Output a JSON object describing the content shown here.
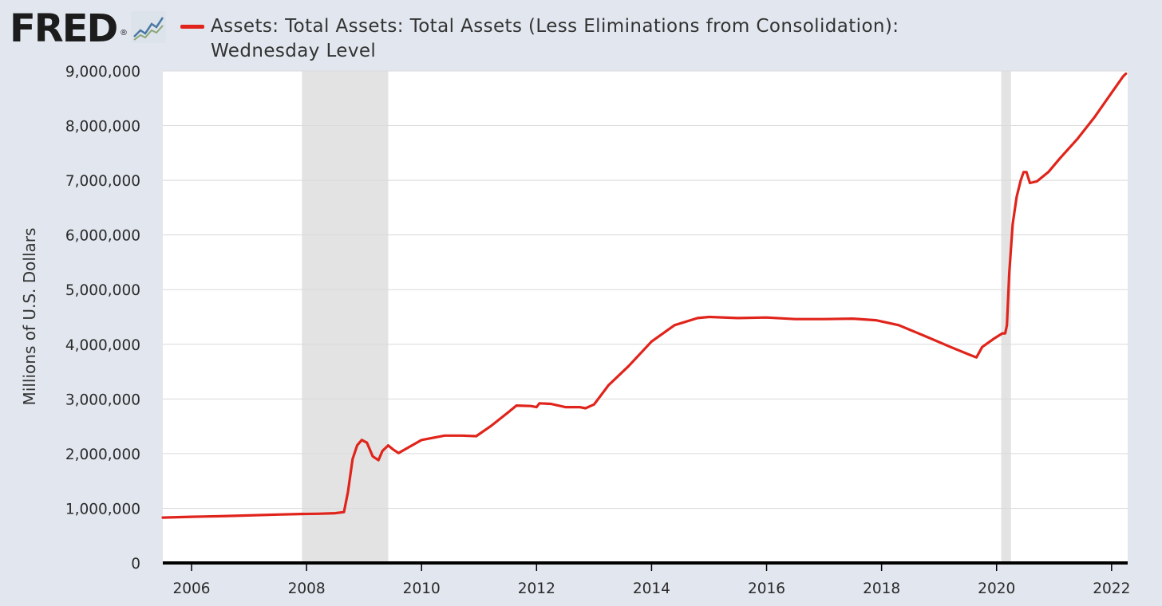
{
  "header": {
    "logo_text": "FRED",
    "logo_registered": "®",
    "graph_icon": "fred-graph-icon",
    "series_color": "#e0241b",
    "series_label": "Assets: Total Assets: Total Assets (Less Eliminations from Consolidation): Wednesday Level"
  },
  "chart_data": {
    "type": "line",
    "title": "",
    "xlabel": "",
    "ylabel": "Millions of U.S. Dollars",
    "xlim": [
      2005.5,
      2022.28
    ],
    "ylim": [
      0,
      9000000
    ],
    "y_ticks": [
      0,
      1000000,
      2000000,
      3000000,
      4000000,
      5000000,
      6000000,
      7000000,
      8000000,
      9000000
    ],
    "y_tick_labels": [
      "0",
      "1,000,000",
      "2,000,000",
      "3,000,000",
      "4,000,000",
      "5,000,000",
      "6,000,000",
      "7,000,000",
      "8,000,000",
      "9,000,000"
    ],
    "x_ticks": [
      2006,
      2008,
      2010,
      2012,
      2014,
      2016,
      2018,
      2020,
      2022
    ],
    "x_tick_labels": [
      "2006",
      "2008",
      "2010",
      "2012",
      "2014",
      "2016",
      "2018",
      "2020",
      "2022"
    ],
    "grid": true,
    "recessions": [
      [
        2007.92,
        2009.42
      ],
      [
        2020.08,
        2020.25
      ]
    ],
    "series": [
      {
        "color": "#e0241b",
        "points": [
          [
            2005.5,
            830000
          ],
          [
            2006.0,
            845000
          ],
          [
            2006.5,
            855000
          ],
          [
            2007.0,
            870000
          ],
          [
            2007.5,
            885000
          ],
          [
            2007.9,
            895000
          ],
          [
            2008.2,
            900000
          ],
          [
            2008.5,
            910000
          ],
          [
            2008.65,
            930000
          ],
          [
            2008.72,
            1300000
          ],
          [
            2008.8,
            1900000
          ],
          [
            2008.88,
            2150000
          ],
          [
            2008.96,
            2250000
          ],
          [
            2009.05,
            2200000
          ],
          [
            2009.15,
            1950000
          ],
          [
            2009.25,
            1880000
          ],
          [
            2009.32,
            2050000
          ],
          [
            2009.42,
            2150000
          ],
          [
            2009.5,
            2080000
          ],
          [
            2009.6,
            2010000
          ],
          [
            2009.75,
            2100000
          ],
          [
            2010.0,
            2250000
          ],
          [
            2010.4,
            2330000
          ],
          [
            2010.7,
            2330000
          ],
          [
            2010.95,
            2320000
          ],
          [
            2011.2,
            2500000
          ],
          [
            2011.5,
            2750000
          ],
          [
            2011.65,
            2880000
          ],
          [
            2011.9,
            2870000
          ],
          [
            2012.0,
            2850000
          ],
          [
            2012.05,
            2920000
          ],
          [
            2012.25,
            2910000
          ],
          [
            2012.5,
            2850000
          ],
          [
            2012.75,
            2850000
          ],
          [
            2012.85,
            2830000
          ],
          [
            2013.0,
            2900000
          ],
          [
            2013.25,
            3250000
          ],
          [
            2013.6,
            3600000
          ],
          [
            2014.0,
            4050000
          ],
          [
            2014.4,
            4350000
          ],
          [
            2014.8,
            4480000
          ],
          [
            2015.0,
            4500000
          ],
          [
            2015.5,
            4480000
          ],
          [
            2016.0,
            4490000
          ],
          [
            2016.5,
            4460000
          ],
          [
            2017.0,
            4460000
          ],
          [
            2017.5,
            4470000
          ],
          [
            2017.9,
            4440000
          ],
          [
            2018.3,
            4350000
          ],
          [
            2018.8,
            4130000
          ],
          [
            2019.2,
            3950000
          ],
          [
            2019.55,
            3800000
          ],
          [
            2019.65,
            3760000
          ],
          [
            2019.75,
            3950000
          ],
          [
            2019.95,
            4100000
          ],
          [
            2020.1,
            4200000
          ],
          [
            2020.15,
            4200000
          ],
          [
            2020.18,
            4350000
          ],
          [
            2020.22,
            5300000
          ],
          [
            2020.28,
            6200000
          ],
          [
            2020.35,
            6700000
          ],
          [
            2020.42,
            7000000
          ],
          [
            2020.47,
            7150000
          ],
          [
            2020.52,
            7150000
          ],
          [
            2020.58,
            6950000
          ],
          [
            2020.7,
            6980000
          ],
          [
            2020.9,
            7150000
          ],
          [
            2021.1,
            7400000
          ],
          [
            2021.4,
            7750000
          ],
          [
            2021.7,
            8150000
          ],
          [
            2022.0,
            8600000
          ],
          [
            2022.2,
            8900000
          ],
          [
            2022.25,
            8950000
          ]
        ]
      }
    ]
  }
}
